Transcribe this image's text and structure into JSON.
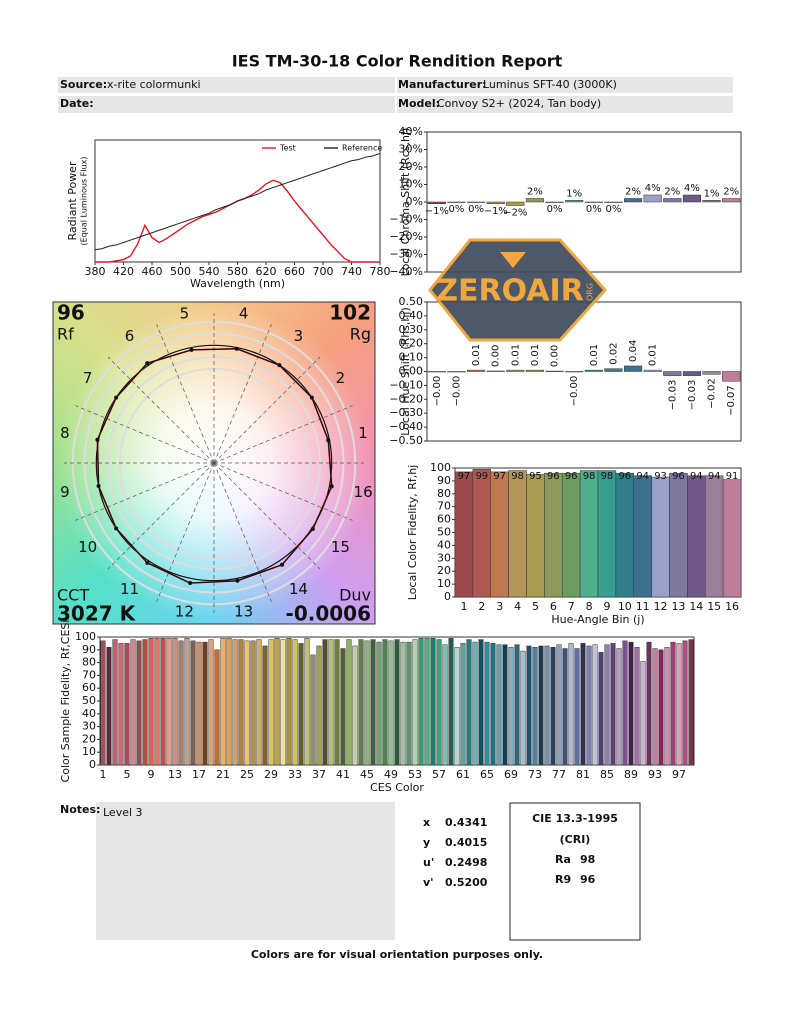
{
  "header": {
    "title": "IES TM-30-18 Color Rendition Report",
    "source_label": "Source:",
    "source": "x-rite colormunki",
    "manufacturer_label": "Manufacturer:",
    "manufacturer": "Luminus SFT-40 (3000K)",
    "date_label": "Date:",
    "model_label": "Model:",
    "model": "Convoy S2+ (2024, Tan body)"
  },
  "chart_data": [
    {
      "type": "line",
      "xlabel": "Wavelength (nm)",
      "ylabel": [
        "Radiant Power",
        "(Equal Luminous Flux)"
      ],
      "legend": "upper right",
      "x": [
        380,
        390,
        400,
        410,
        420,
        430,
        440,
        450,
        460,
        470,
        480,
        490,
        500,
        510,
        520,
        530,
        540,
        550,
        560,
        570,
        580,
        590,
        600,
        610,
        620,
        630,
        640,
        650,
        660,
        670,
        680,
        690,
        700,
        710,
        720,
        730,
        740,
        750,
        760,
        770,
        780
      ],
      "xlim": [
        380,
        780
      ],
      "xticks": [
        380,
        420,
        460,
        500,
        540,
        580,
        620,
        660,
        700,
        740,
        780
      ],
      "ylim": [
        0,
        1
      ],
      "series": [
        {
          "name": "Test",
          "color": "#e8141e",
          "values": [
            0,
            0,
            0,
            0.01,
            0.02,
            0.05,
            0.15,
            0.3,
            0.2,
            0.16,
            0.19,
            0.23,
            0.27,
            0.31,
            0.34,
            0.37,
            0.39,
            0.41,
            0.44,
            0.47,
            0.5,
            0.52,
            0.55,
            0.59,
            0.64,
            0.67,
            0.65,
            0.58,
            0.5,
            0.43,
            0.36,
            0.29,
            0.22,
            0.15,
            0.09,
            0.03,
            0,
            0,
            0,
            0,
            0
          ]
        },
        {
          "name": "Reference",
          "color": "#222222",
          "values": [
            0.1,
            0.11,
            0.13,
            0.14,
            0.16,
            0.18,
            0.2,
            0.22,
            0.24,
            0.26,
            0.28,
            0.3,
            0.32,
            0.34,
            0.36,
            0.38,
            0.4,
            0.43,
            0.45,
            0.47,
            0.5,
            0.52,
            0.54,
            0.56,
            0.59,
            0.61,
            0.63,
            0.65,
            0.67,
            0.69,
            0.71,
            0.73,
            0.75,
            0.77,
            0.79,
            0.81,
            0.83,
            0.84,
            0.86,
            0.87,
            0.89
          ]
        }
      ]
    },
    {
      "type": "bar",
      "ylabel": "Local Chroma Shift (Rcs,hj)",
      "ylim": [
        -40,
        40
      ],
      "yticks": [
        {
          "value": -40,
          "label": "−40%"
        },
        {
          "value": -30,
          "label": "−30%"
        },
        {
          "value": -20,
          "label": "−20%"
        },
        {
          "value": -10,
          "label": "−10%"
        },
        {
          "value": 0,
          "label": "0%"
        },
        {
          "value": 10,
          "label": "10%"
        },
        {
          "value": 20,
          "label": "20%"
        },
        {
          "value": 30,
          "label": "30%"
        },
        {
          "value": 40,
          "label": "40%"
        }
      ],
      "values": [
        -1,
        0,
        0,
        -1,
        -2,
        2,
        0,
        1,
        0,
        0,
        2,
        4,
        2,
        4,
        1,
        2
      ],
      "value_labels": [
        "−1%",
        "0%",
        "0%",
        "−1%",
        "−2%",
        "2%",
        "0%",
        "1%",
        "0%",
        "0%",
        "2%",
        "4%",
        "2%",
        "4%",
        "1%",
        "2%"
      ],
      "colors": [
        "#9c4a4e",
        "#b05a4f",
        "#c0784f",
        "#b59557",
        "#a89a52",
        "#8e9a58",
        "#6c9c62",
        "#4fae8e",
        "#3a9e8f",
        "#2f7e8a",
        "#3e6f8f",
        "#98a2c8",
        "#7c799c",
        "#6e5887",
        "#9b7f9c",
        "#c07d9b"
      ]
    },
    {
      "type": "bar",
      "ylabel": "Local Hue Shift (Rhs,hj)",
      "ylim": [
        -0.5,
        0.5
      ],
      "yticks": [
        {
          "value": -0.5,
          "label": "−0.50"
        },
        {
          "value": -0.4,
          "label": "−0.40"
        },
        {
          "value": -0.3,
          "label": "−0.30"
        },
        {
          "value": -0.2,
          "label": "−0.20"
        },
        {
          "value": -0.1,
          "label": "−0.10"
        },
        {
          "value": 0,
          "label": "0.00"
        },
        {
          "value": 0.1,
          "label": "0.10"
        },
        {
          "value": 0.2,
          "label": "0.20"
        },
        {
          "value": 0.3,
          "label": "0.30"
        },
        {
          "value": 0.4,
          "label": "0.40"
        },
        {
          "value": 0.5,
          "label": "0.50"
        }
      ],
      "values": [
        -0.002,
        -0.002,
        0.01,
        0.004,
        0.01,
        0.01,
        0.003,
        -0.002,
        0.01,
        0.02,
        0.04,
        0.01,
        -0.03,
        -0.03,
        -0.02,
        -0.07
      ],
      "value_labels": [
        "−0.00",
        "−0.00",
        "0.01",
        "0.00",
        "0.01",
        "0.01",
        "0.00",
        "−0.00",
        "0.01",
        "0.02",
        "0.04",
        "0.01",
        "−0.03",
        "−0.03",
        "−0.02",
        "−0.07"
      ],
      "colors": [
        "#9c4a4e",
        "#b05a4f",
        "#c0784f",
        "#b59557",
        "#a89a52",
        "#8e9a58",
        "#6c9c62",
        "#4fae8e",
        "#3a9e8f",
        "#2f7e8a",
        "#3e6f8f",
        "#98a2c8",
        "#7c799c",
        "#6e5887",
        "#9b7f9c",
        "#c07d9b"
      ]
    },
    {
      "type": "bar",
      "xlabel": "Hue-Angle Bin (j)",
      "ylabel": "Local Color Fidelity, Rf,hj",
      "ylim": [
        0,
        100
      ],
      "yticks": [
        0,
        10,
        20,
        30,
        40,
        50,
        60,
        70,
        80,
        90,
        100
      ],
      "categories": [
        1,
        2,
        3,
        4,
        5,
        6,
        7,
        8,
        9,
        10,
        11,
        12,
        13,
        14,
        15,
        16
      ],
      "values": [
        97,
        99,
        97,
        98,
        95,
        96,
        96,
        98,
        98,
        96,
        94,
        93,
        96,
        94,
        94,
        91
      ],
      "colors": [
        "#9c4a4e",
        "#b05a4f",
        "#c0784f",
        "#b59557",
        "#a89a52",
        "#8e9a58",
        "#6c9c62",
        "#4fae8e",
        "#3a9e8f",
        "#2f7e8a",
        "#3e6f8f",
        "#98a2c8",
        "#7c799c",
        "#6e5887",
        "#9b7f9c",
        "#c07d9b"
      ]
    },
    {
      "type": "polar",
      "rf": 96,
      "rf_label": "Rf",
      "rg": 102,
      "rg_label": "Rg",
      "cct_label": "CCT",
      "cct": "3027 K",
      "duv_label": "Duv",
      "duv": -0.0006,
      "categories": [
        1,
        2,
        3,
        4,
        5,
        6,
        7,
        8,
        9,
        10,
        11,
        12,
        13,
        14,
        15,
        16
      ],
      "rlim": [
        0,
        1.3
      ],
      "rticks": [
        0.8,
        0.9,
        1.1,
        1.2
      ],
      "reference": 1,
      "values": [
        0.99,
        1.0,
        1.0,
        0.99,
        0.98,
        1.02,
        1.0,
        1.01,
        1.0,
        1.0,
        1.02,
        1.04,
        1.02,
        1.04,
        1.01,
        1.02
      ],
      "color": "#111111",
      "line_color": "#e8141e"
    },
    {
      "type": "bar",
      "xlabel": "CES Color",
      "ylabel": "Color Sample Fidelity, Rf,CESi",
      "ylim": [
        0,
        100
      ],
      "yticks": [
        0,
        10,
        20,
        30,
        40,
        50,
        60,
        70,
        80,
        90,
        100
      ],
      "categories": [
        1,
        null,
        null,
        null,
        5,
        null,
        null,
        null,
        9,
        null,
        null,
        null,
        13,
        null,
        null,
        null,
        17,
        null,
        null,
        null,
        21,
        null,
        null,
        null,
        25,
        null,
        null,
        null,
        29,
        null,
        null,
        null,
        33,
        null,
        null,
        null,
        37,
        null,
        null,
        null,
        41,
        null,
        null,
        null,
        45,
        null,
        null,
        null,
        49,
        null,
        null,
        null,
        53,
        null,
        null,
        null,
        57,
        null,
        null,
        null,
        61,
        null,
        null,
        null,
        65,
        null,
        null,
        null,
        69,
        null,
        null,
        null,
        73,
        null,
        null,
        null,
        77,
        null,
        null,
        null,
        81,
        null,
        null,
        null,
        85,
        null,
        null,
        null,
        89,
        null,
        null,
        null,
        93,
        null,
        null,
        null,
        97,
        null,
        null
      ],
      "values": [
        97,
        92,
        98,
        95,
        95,
        98,
        97,
        98,
        99,
        99,
        99,
        99,
        99,
        97,
        99,
        97,
        96,
        96,
        98,
        90,
        99,
        99,
        98,
        98,
        97,
        97,
        98,
        93,
        98,
        99,
        98,
        99,
        98,
        95,
        99,
        86,
        93,
        98,
        98,
        98,
        91,
        98,
        93,
        98,
        97,
        98,
        96,
        98,
        97,
        98,
        96,
        96,
        98,
        99,
        99,
        99,
        98,
        94,
        99,
        92,
        95,
        98,
        96,
        98,
        96,
        95,
        94,
        94,
        92,
        94,
        89,
        93,
        92,
        93,
        93,
        92,
        94,
        91,
        95,
        91,
        95,
        93,
        94,
        88,
        94,
        95,
        91,
        97,
        96,
        92,
        81,
        96,
        91,
        90,
        92,
        96,
        95,
        97,
        98
      ],
      "colors": [
        "#a0505a",
        "#5a2a38",
        "#c06070",
        "#c86a78",
        "#b04858",
        "#d08890",
        "#905050",
        "#b05040",
        "#e06058",
        "#e07868",
        "#c05048",
        "#e0a090",
        "#d09080",
        "#a08070",
        "#c0a090",
        "#806050",
        "#d09060",
        "#704020",
        "#e0a070",
        "#c07030",
        "#f0b060",
        "#e0a050",
        "#d0a070",
        "#b08040",
        "#f0c070",
        "#b09050",
        "#d0b060",
        "#806030",
        "#e0c050",
        "#c0a040",
        "#f0e090",
        "#a09040",
        "#d0c060",
        "#606030",
        "#c0c070",
        "#909070",
        "#a0a050",
        "#505030",
        "#b0c070",
        "#708040",
        "#506030",
        "#90b060",
        "#c0d0a0",
        "#608050",
        "#90b080",
        "#406040",
        "#70a070",
        "#508050",
        "#90c090",
        "#305a40",
        "#a0c0a0",
        "#609070",
        "#b0d0b0",
        "#30a070",
        "#50b080",
        "#20806a",
        "#40a080",
        "#80c0b0",
        "#206050",
        "#b0d8d0",
        "#60a0a0",
        "#208080",
        "#70b0b0",
        "#105060",
        "#3090a0",
        "#207080",
        "#60a0b0",
        "#104050",
        "#80b0c0",
        "#306880",
        "#a0c0d0",
        "#205070",
        "#5080a0",
        "#203850",
        "#7090b0",
        "#304060",
        "#90a0c0",
        "#405080",
        "#b0b8d0",
        "#6070a0",
        "#303050",
        "#8080b0",
        "#c0c0e0",
        "#504070",
        "#9080b0",
        "#604080",
        "#b0a0c0",
        "#805090",
        "#402050",
        "#a070a0",
        "#d0b0d0",
        "#703060",
        "#c080a0",
        "#902060",
        "#d090b0",
        "#a04070",
        "#e0a0c0",
        "#b05080",
        "#803050"
      ]
    }
  ],
  "notes": {
    "label": "Notes:",
    "text": "Level 3"
  },
  "colorimetry": {
    "rows": [
      [
        "x",
        "0.4341"
      ],
      [
        "y",
        "0.4015"
      ],
      [
        "u'",
        "0.2498"
      ],
      [
        "v'",
        "0.5200"
      ]
    ]
  },
  "cri": {
    "title": "CIE 13.3-1995",
    "subtitle": "(CRI)",
    "rows": [
      [
        "Ra",
        "98"
      ],
      [
        "R9",
        "96"
      ]
    ]
  },
  "footer": "Colors are for visual orientation purposes only.",
  "watermark": {
    "text": "ZEROAIR",
    "suffix": "ORG"
  }
}
